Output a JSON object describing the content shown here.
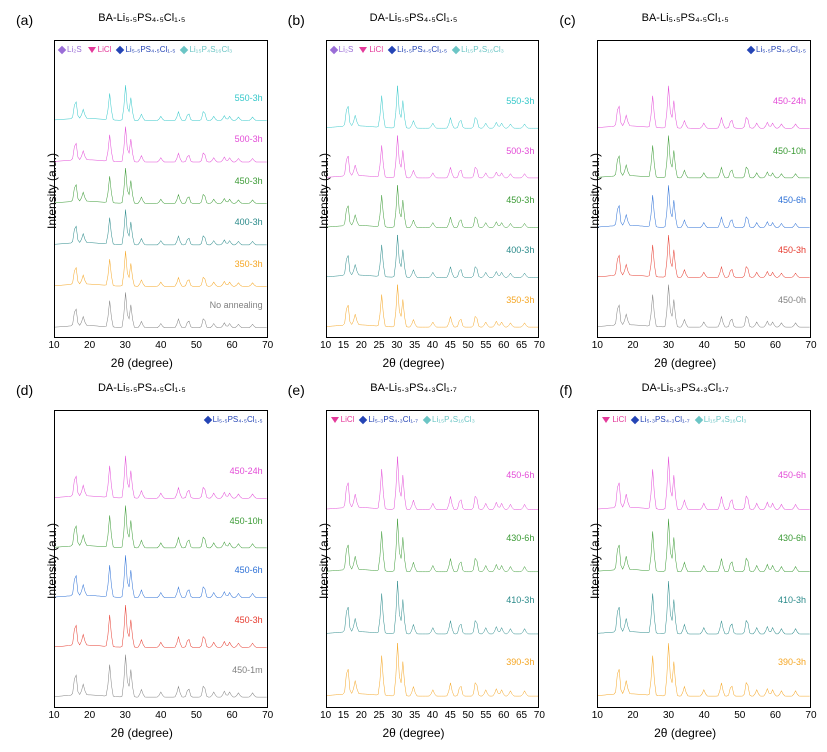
{
  "labels": {
    "ylabel": "Intensity (a.u.)",
    "xlabel": "2θ (degree)"
  },
  "xaxis": {
    "min": 10,
    "max": 70,
    "ticks": [
      10,
      20,
      30,
      40,
      50,
      60,
      70
    ],
    "ticks_dense": [
      10,
      15,
      20,
      25,
      30,
      35,
      40,
      45,
      50,
      55,
      60,
      65,
      70
    ]
  },
  "colors": {
    "cyan": "#35c8ca",
    "magenta": "#e34bd7",
    "green": "#3a9a34",
    "teal": "#2a8a8a",
    "orange": "#f5a623",
    "gray": "#808080",
    "blue": "#2b6fd6",
    "red": "#e63a2e",
    "purple": "#9a6dd7",
    "black": "#000000",
    "lightteal": "#6bc5c5",
    "navy": "#2444b5",
    "pink": "#e4399a"
  },
  "legend_phases": {
    "Li2S": {
      "label": "Li₂S",
      "marker": "diamond",
      "color_key": "purple"
    },
    "LiCl": {
      "label": "LiCl",
      "marker": "triangle",
      "color_key": "pink"
    },
    "Li55": {
      "label": "Li₅.₅PS₄.₅Cl₁.₅",
      "marker": "diamond",
      "color_key": "navy"
    },
    "Li53": {
      "label": "Li₅.₃PS₄.₃Cl₁.₇",
      "marker": "diamond",
      "color_key": "navy"
    },
    "Li15": {
      "label": "Li₁₅P₄S₁₆Cl₃",
      "marker": "diamond",
      "color_key": "lightteal"
    }
  },
  "peak_profile": [
    {
      "x": 15.8,
      "h": 0.55
    },
    {
      "x": 18.0,
      "h": 0.25
    },
    {
      "x": 25.5,
      "h": 0.75
    },
    {
      "x": 30.0,
      "h": 1.0
    },
    {
      "x": 31.5,
      "h": 0.65
    },
    {
      "x": 34.5,
      "h": 0.18
    },
    {
      "x": 40.0,
      "h": 0.12
    },
    {
      "x": 45.0,
      "h": 0.25
    },
    {
      "x": 47.8,
      "h": 0.22
    },
    {
      "x": 52.2,
      "h": 0.3
    },
    {
      "x": 55.0,
      "h": 0.12
    },
    {
      "x": 58.0,
      "h": 0.14
    },
    {
      "x": 59.5,
      "h": 0.12
    },
    {
      "x": 62.0,
      "h": 0.1
    },
    {
      "x": 66.0,
      "h": 0.1
    }
  ],
  "panels": [
    {
      "id": "a",
      "label": "(a)",
      "title": "BA-Li₅.₅PS₄.₅Cl₁.₅",
      "xticks": "normal",
      "legend": [
        "Li2S",
        "LiCl",
        "Li55",
        "Li15"
      ],
      "legend_top_only": false,
      "traces": [
        {
          "label": "550-3h",
          "color_key": "cyan"
        },
        {
          "label": "500-3h",
          "color_key": "magenta"
        },
        {
          "label": "450-3h",
          "color_key": "green"
        },
        {
          "label": "400-3h",
          "color_key": "teal"
        },
        {
          "label": "350-3h",
          "color_key": "orange"
        },
        {
          "label": "No annealing",
          "color_key": "gray"
        }
      ]
    },
    {
      "id": "b",
      "label": "(b)",
      "title": "DA-Li₅.₅PS₄.₅Cl₁.₅",
      "xticks": "dense",
      "legend": [
        "Li2S",
        "LiCl",
        "Li55",
        "Li15"
      ],
      "legend_top_only": false,
      "traces": [
        {
          "label": "550-3h",
          "color_key": "cyan"
        },
        {
          "label": "500-3h",
          "color_key": "magenta"
        },
        {
          "label": "450-3h",
          "color_key": "green"
        },
        {
          "label": "400-3h",
          "color_key": "teal"
        },
        {
          "label": "350-3h",
          "color_key": "orange"
        }
      ]
    },
    {
      "id": "c",
      "label": "(c)",
      "title": "BA-Li₅.₅PS₄.₅Cl₁.₅",
      "xticks": "normal",
      "legend": [
        "Li55"
      ],
      "legend_top_only": true,
      "traces": [
        {
          "label": "450-24h",
          "color_key": "magenta"
        },
        {
          "label": "450-10h",
          "color_key": "green"
        },
        {
          "label": "450-6h",
          "color_key": "blue"
        },
        {
          "label": "450-3h",
          "color_key": "red"
        },
        {
          "label": "450-0h",
          "color_key": "gray"
        }
      ]
    },
    {
      "id": "d",
      "label": "(d)",
      "title": "DA-Li₅.₅PS₄.₅Cl₁.₅",
      "xticks": "normal",
      "legend": [
        "Li55"
      ],
      "legend_top_only": true,
      "traces": [
        {
          "label": "450-24h",
          "color_key": "magenta"
        },
        {
          "label": "450-10h",
          "color_key": "green"
        },
        {
          "label": "450-6h",
          "color_key": "blue"
        },
        {
          "label": "450-3h",
          "color_key": "red"
        },
        {
          "label": "450-1m",
          "color_key": "gray"
        }
      ]
    },
    {
      "id": "e",
      "label": "(e)",
      "title": "BA-Li₅.₃PS₄.₃Cl₁.₇",
      "xticks": "dense",
      "legend": [
        "LiCl",
        "Li53",
        "Li15"
      ],
      "legend_top_only": false,
      "traces": [
        {
          "label": "450-6h",
          "color_key": "magenta"
        },
        {
          "label": "430-6h",
          "color_key": "green"
        },
        {
          "label": "410-3h",
          "color_key": "teal"
        },
        {
          "label": "390-3h",
          "color_key": "orange"
        }
      ]
    },
    {
      "id": "f",
      "label": "(f)",
      "title": "DA-Li₅.₃PS₄.₃Cl₁.₇",
      "xticks": "normal",
      "legend": [
        "LiCl",
        "Li53",
        "Li15"
      ],
      "legend_top_only": false,
      "traces": [
        {
          "label": "450-6h",
          "color_key": "magenta"
        },
        {
          "label": "430-6h",
          "color_key": "green"
        },
        {
          "label": "410-3h",
          "color_key": "teal"
        },
        {
          "label": "390-3h",
          "color_key": "orange"
        }
      ]
    }
  ]
}
